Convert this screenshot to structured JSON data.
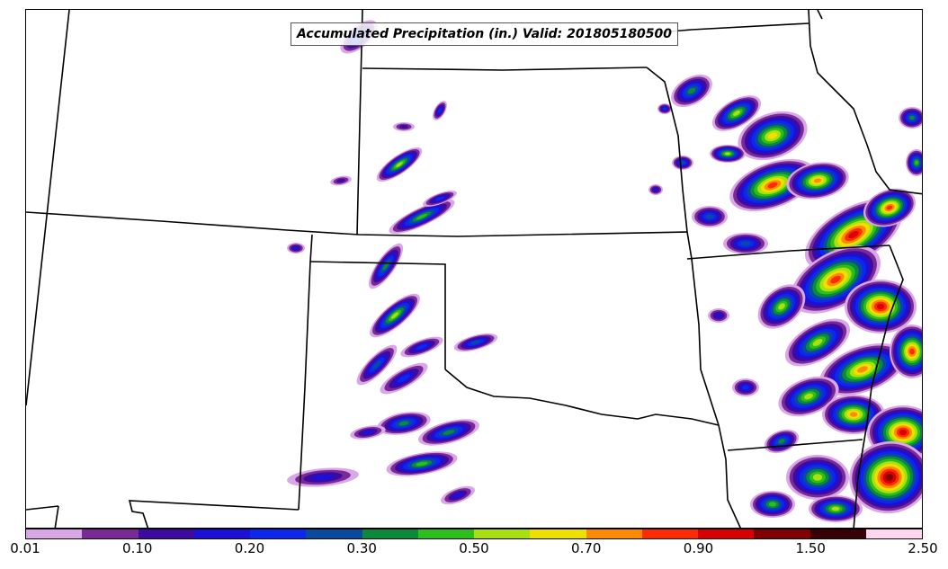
{
  "map": {
    "title": "Accumulated Precipitation (in.) Valid: 201805180500",
    "field": "accumulated precipitation"
  },
  "colorbar": {
    "units": "in.",
    "colors": [
      "#d9a6e8",
      "#7a2a96",
      "#3f0aa0",
      "#1c10d8",
      "#0a28f0",
      "#0a4a9e",
      "#0a8a3a",
      "#2cbe1a",
      "#a8e010",
      "#f0e000",
      "#ff8a00",
      "#ff2a00",
      "#d80000",
      "#800000",
      "#3a0008",
      "#ffd6f0"
    ],
    "tick_labels": [
      "0.01",
      "0.10",
      "0.20",
      "0.30",
      "0.50",
      "0.70",
      "0.90",
      "1.50",
      "2.50"
    ],
    "tick_values": [
      0.01,
      0.1,
      0.2,
      0.3,
      0.5,
      0.7,
      0.9,
      1.5,
      2.5
    ]
  }
}
